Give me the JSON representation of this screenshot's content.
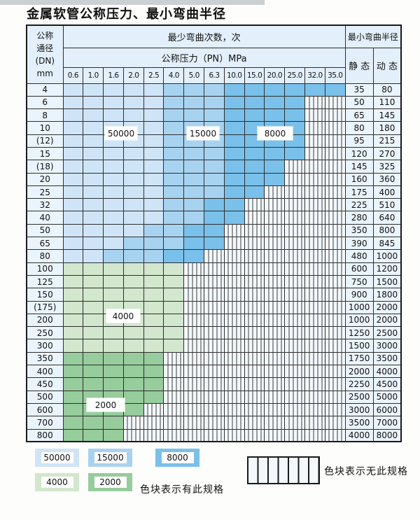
{
  "title": "金属软管公称压力、最小弯曲半径",
  "table": {
    "dn_header_lines": [
      "公称",
      "通径",
      "(DN)",
      "mm"
    ],
    "bend_times_header": "最少弯曲次数，次",
    "pressure_header": "公称压力（PN）MPa",
    "pressures": [
      "0.6",
      "1.0",
      "1.6",
      "2.0",
      "2.5",
      "4.0",
      "5.0",
      "6.3",
      "10.0",
      "15.0",
      "20.0",
      "25.0",
      "32.0",
      "35.0"
    ],
    "bend_radius_header": "最小弯曲半径",
    "static_header": "静 态",
    "dynamic_header": "动 态",
    "bend_count_labels": [
      "50000",
      "15000",
      "8000",
      "4000",
      "2000"
    ],
    "rows": [
      {
        "dn": "4",
        "static": "35",
        "dynamic": "80",
        "cells": [
          "b1",
          "b1",
          "b1",
          "b1",
          "b1",
          "b2",
          "b2",
          "b2",
          "b3",
          "b3",
          "b3",
          "b3",
          "b3",
          "b3"
        ]
      },
      {
        "dn": "6",
        "static": "50",
        "dynamic": "110",
        "cells": [
          "b1",
          "b1",
          "b1",
          "b1",
          "b1",
          "b2",
          "b2",
          "b2",
          "b3",
          "b3",
          "b3",
          "b3",
          "x",
          "x"
        ]
      },
      {
        "dn": "8",
        "static": "65",
        "dynamic": "145",
        "cells": [
          "b1",
          "b1",
          "b1",
          "b1",
          "b1",
          "b2",
          "b2",
          "b2",
          "b3",
          "b3",
          "b3",
          "b3",
          "x",
          "x"
        ]
      },
      {
        "dn": "10",
        "static": "80",
        "dynamic": "180",
        "cells": [
          "b1",
          "b1",
          "b1",
          "b1",
          "b1",
          "b2",
          "b2",
          "b2",
          "b3",
          "b3",
          "b3",
          "b3",
          "x",
          "x"
        ]
      },
      {
        "dn": "(12)",
        "static": "95",
        "dynamic": "215",
        "cells": [
          "b1",
          "b1",
          "b1",
          "b1",
          "b1",
          "b2",
          "b2",
          "b2",
          "b3",
          "b3",
          "b3",
          "b3",
          "x",
          "x"
        ]
      },
      {
        "dn": "15",
        "static": "120",
        "dynamic": "270",
        "cells": [
          "b1",
          "b1",
          "b1",
          "b1",
          "b1",
          "b2",
          "b2",
          "b2",
          "b3",
          "b3",
          "b3",
          "b3",
          "x",
          "x"
        ]
      },
      {
        "dn": "(18)",
        "static": "145",
        "dynamic": "325",
        "cells": [
          "b1",
          "b1",
          "b1",
          "b1",
          "b1",
          "b2",
          "b2",
          "b2",
          "b3",
          "b3",
          "b3",
          "x",
          "x",
          "x"
        ]
      },
      {
        "dn": "20",
        "static": "160",
        "dynamic": "360",
        "cells": [
          "b1",
          "b1",
          "b1",
          "b1",
          "b1",
          "b2",
          "b2",
          "b2",
          "b3",
          "b3",
          "b3",
          "x",
          "x",
          "x"
        ]
      },
      {
        "dn": "25",
        "static": "175",
        "dynamic": "400",
        "cells": [
          "b1",
          "b1",
          "b1",
          "b1",
          "b1",
          "b2",
          "b2",
          "b2",
          "b3",
          "b3",
          "x",
          "x",
          "x",
          "x"
        ]
      },
      {
        "dn": "32",
        "static": "225",
        "dynamic": "510",
        "cells": [
          "b1",
          "b1",
          "b1",
          "b1",
          "b1",
          "b2",
          "b2",
          "b3",
          "b3",
          "x",
          "x",
          "x",
          "x",
          "x"
        ]
      },
      {
        "dn": "40",
        "static": "280",
        "dynamic": "640",
        "cells": [
          "b1",
          "b1",
          "b1",
          "b1",
          "b1",
          "b2",
          "b2",
          "b3",
          "b3",
          "x",
          "x",
          "x",
          "x",
          "x"
        ]
      },
      {
        "dn": "50",
        "static": "350",
        "dynamic": "800",
        "cells": [
          "b1",
          "b1",
          "b1",
          "b1",
          "b2",
          "b2",
          "b3",
          "b3",
          "x",
          "x",
          "x",
          "x",
          "x",
          "x"
        ]
      },
      {
        "dn": "65",
        "static": "390",
        "dynamic": "845",
        "cells": [
          "b1",
          "b1",
          "b1",
          "b2",
          "b2",
          "b2",
          "b3",
          "b3",
          "x",
          "x",
          "x",
          "x",
          "x",
          "x"
        ]
      },
      {
        "dn": "80",
        "static": "480",
        "dynamic": "1000",
        "cells": [
          "b1",
          "b1",
          "b2",
          "b2",
          "b2",
          "b3",
          "b3",
          "x",
          "x",
          "x",
          "x",
          "x",
          "x",
          "x"
        ]
      },
      {
        "dn": "100",
        "static": "600",
        "dynamic": "1200",
        "cells": [
          "g1",
          "g1",
          "g1",
          "g1",
          "g1",
          "g1",
          "x",
          "x",
          "x",
          "x",
          "x",
          "x",
          "x",
          "x"
        ]
      },
      {
        "dn": "125",
        "static": "750",
        "dynamic": "1500",
        "cells": [
          "g1",
          "g1",
          "g1",
          "g1",
          "g1",
          "g1",
          "x",
          "x",
          "x",
          "x",
          "x",
          "x",
          "x",
          "x"
        ]
      },
      {
        "dn": "150",
        "static": "900",
        "dynamic": "1800",
        "cells": [
          "g1",
          "g1",
          "g1",
          "g1",
          "g1",
          "g1",
          "x",
          "x",
          "x",
          "x",
          "x",
          "x",
          "x",
          "x"
        ]
      },
      {
        "dn": "(175)",
        "static": "1000",
        "dynamic": "2000",
        "cells": [
          "g1",
          "g1",
          "g1",
          "g1",
          "g1",
          "g1",
          "x",
          "x",
          "x",
          "x",
          "x",
          "x",
          "x",
          "x"
        ]
      },
      {
        "dn": "200",
        "static": "1000",
        "dynamic": "2000",
        "cells": [
          "g1",
          "g1",
          "g1",
          "g1",
          "g1",
          "g1",
          "x",
          "x",
          "x",
          "x",
          "x",
          "x",
          "x",
          "x"
        ]
      },
      {
        "dn": "250",
        "static": "1250",
        "dynamic": "2500",
        "cells": [
          "g1",
          "g1",
          "g1",
          "g1",
          "g1",
          "g1",
          "x",
          "x",
          "x",
          "x",
          "x",
          "x",
          "x",
          "x"
        ]
      },
      {
        "dn": "300",
        "static": "1500",
        "dynamic": "3000",
        "cells": [
          "g1",
          "g1",
          "g1",
          "g1",
          "g1",
          "g1",
          "x",
          "x",
          "x",
          "x",
          "x",
          "x",
          "x",
          "x"
        ]
      },
      {
        "dn": "350",
        "static": "1750",
        "dynamic": "3500",
        "cells": [
          "g2",
          "g2",
          "g2",
          "g2",
          "g2",
          "x",
          "x",
          "x",
          "x",
          "x",
          "x",
          "x",
          "x",
          "x"
        ]
      },
      {
        "dn": "400",
        "static": "2000",
        "dynamic": "4000",
        "cells": [
          "g2",
          "g2",
          "g2",
          "g2",
          "g2",
          "x",
          "x",
          "x",
          "x",
          "x",
          "x",
          "x",
          "x",
          "x"
        ]
      },
      {
        "dn": "450",
        "static": "2250",
        "dynamic": "4500",
        "cells": [
          "g2",
          "g2",
          "g2",
          "g2",
          "g2",
          "x",
          "x",
          "x",
          "x",
          "x",
          "x",
          "x",
          "x",
          "x"
        ]
      },
      {
        "dn": "500",
        "static": "2500",
        "dynamic": "5000",
        "cells": [
          "g2",
          "g2",
          "g2",
          "g2",
          "g2",
          "x",
          "x",
          "x",
          "x",
          "x",
          "x",
          "x",
          "x",
          "x"
        ]
      },
      {
        "dn": "600",
        "static": "3000",
        "dynamic": "6000",
        "cells": [
          "g2",
          "g2",
          "g2",
          "g2",
          "x",
          "x",
          "x",
          "x",
          "x",
          "x",
          "x",
          "x",
          "x",
          "x"
        ]
      },
      {
        "dn": "700",
        "static": "3500",
        "dynamic": "7000",
        "cells": [
          "g2",
          "g2",
          "g2",
          "x",
          "x",
          "x",
          "x",
          "x",
          "x",
          "x",
          "x",
          "x",
          "x",
          "x"
        ]
      },
      {
        "dn": "800",
        "static": "4000",
        "dynamic": "8000",
        "cells": [
          "g2",
          "g2",
          "g2",
          "x",
          "x",
          "x",
          "x",
          "x",
          "x",
          "x",
          "x",
          "x",
          "x",
          "x"
        ]
      }
    ]
  },
  "legend": {
    "spec_swatches": [
      {
        "label": "50000",
        "band": "b1"
      },
      {
        "label": "15000",
        "band": "b2"
      },
      {
        "label": "8000",
        "band": "b3"
      },
      {
        "label": "4000",
        "band": "g1"
      },
      {
        "label": "2000",
        "band": "g2"
      }
    ],
    "has_spec_text": "色块表示有此规格",
    "no_spec_text": "色块表示无此规格"
  },
  "colors": {
    "blue_50000": "#cfe5f7",
    "blue_15000": "#a8d3f0",
    "blue_8000": "#79c0ea",
    "green_4000": "#d2e7cd",
    "green_2000": "#97cc9c",
    "header_bg": "#e3effa",
    "row_label_bg": "#eaf4fc",
    "hatch_bg": "#f3f8fc"
  }
}
